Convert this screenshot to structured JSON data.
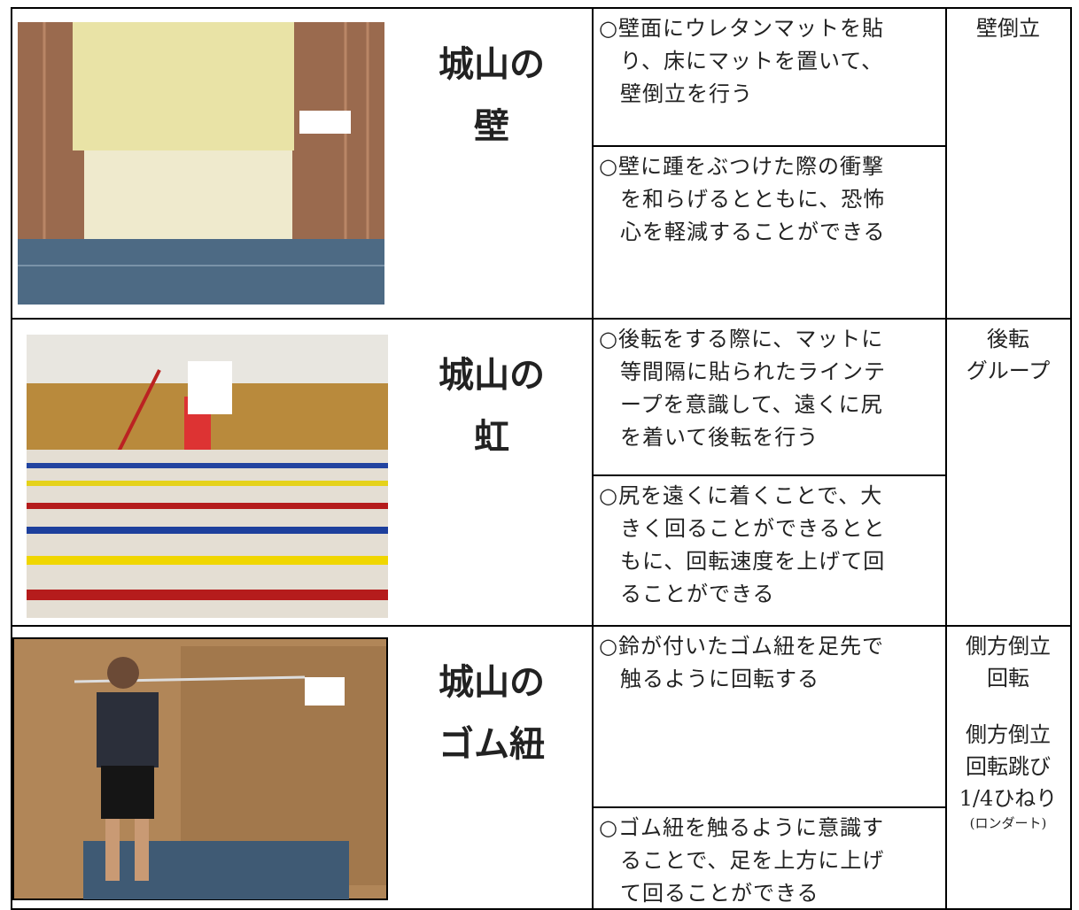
{
  "rows": [
    {
      "name": [
        "城山の",
        "壁"
      ],
      "descriptions": [
        [
          "○壁面にウレタンマットを貼",
          "り、床にマットを置いて、",
          "壁倒立を行う"
        ],
        [
          "○壁に踵をぶつけた際の衝撃",
          "を和らげるとともに、恐怖",
          "心を軽減することができる"
        ]
      ],
      "skill": [
        "壁倒立"
      ]
    },
    {
      "name": [
        "城山の",
        "虹"
      ],
      "descriptions": [
        [
          "○後転をする際に、マットに",
          "等間隔に貼られたラインテ",
          "ープを意識して、遠くに尻",
          "を着いて後転を行う"
        ],
        [
          "○尻を遠くに着くことで、大",
          "きく回ることができるとと",
          "もに、回転速度を上げて回",
          "ることができる"
        ]
      ],
      "skill": [
        "後転",
        "グループ"
      ]
    },
    {
      "name": [
        "城山の",
        "ゴム紐"
      ],
      "descriptions": [
        [
          "○鈴が付いたゴム紐を足先で",
          "触るように回転する"
        ],
        [
          "○ゴム紐を触るように意識す",
          "ることで、足を上方に上げ",
          "て回ることができる"
        ]
      ],
      "skill": [
        "側方倒立",
        "回転"
      ],
      "skill_2": [
        "側方倒立",
        "回転跳び",
        "1/4ひねり"
      ],
      "skill_note": "(ロンダート)"
    }
  ]
}
